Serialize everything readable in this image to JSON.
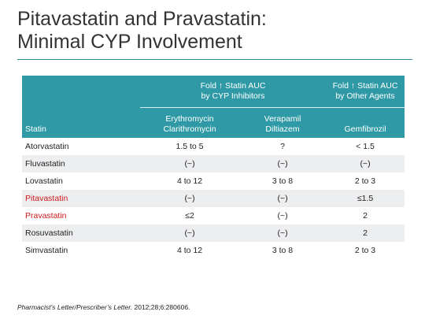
{
  "slide": {
    "title_line1": "Pitavastatin and Pravastatin:",
    "title_line2": "Minimal CYP Involvement"
  },
  "table": {
    "group_headers": {
      "cyp_line1": "Fold ↑ Statin AUC",
      "cyp_line2": "by CYP Inhibitors",
      "other_line1": "Fold ↑ Statin AUC",
      "other_line2": "by Other Agents"
    },
    "columns": {
      "statin": "Statin",
      "erythro_line1": "Erythromycin",
      "erythro_line2": "Clarithromycin",
      "verap_line1": "Verapamil",
      "verap_line2": "Diltiazem",
      "gemfibrozil": "Gemfibrozil"
    },
    "rows": [
      {
        "statin": "Atorvastatin",
        "erythromycin": "1.5 to 5",
        "verapamil": "?",
        "gemfibrozil": "< 1.5",
        "highlight": false
      },
      {
        "statin": "Fluvastatin",
        "erythromycin": "(~)",
        "verapamil": "(~)",
        "gemfibrozil": "(~)",
        "highlight": false
      },
      {
        "statin": "Lovastatin",
        "erythromycin": "4 to 12",
        "verapamil": "3 to 8",
        "gemfibrozil": "2 to 3",
        "highlight": false
      },
      {
        "statin": "Pitavastatin",
        "erythromycin": "(~)",
        "verapamil": "(~)",
        "gemfibrozil": "≤1.5",
        "highlight": true
      },
      {
        "statin": "Pravastatin",
        "erythromycin": "≤2",
        "verapamil": "(~)",
        "gemfibrozil": "2",
        "highlight": true
      },
      {
        "statin": "Rosuvastatin",
        "erythromycin": "(~)",
        "verapamil": "(~)",
        "gemfibrozil": "2",
        "highlight": false
      },
      {
        "statin": "Simvastatin",
        "erythromycin": "4 to 12",
        "verapamil": "3 to 8",
        "gemfibrozil": "2 to 3",
        "highlight": false
      }
    ]
  },
  "reference": {
    "source_italic": "Pharmacist’s Letter/Prescriber’s Letter.",
    "citation": " 2012;28;6:280606."
  },
  "colors": {
    "header_bg": "#2f9aa6",
    "highlight_text": "#d01a1a",
    "rule": "#2a8d99"
  }
}
